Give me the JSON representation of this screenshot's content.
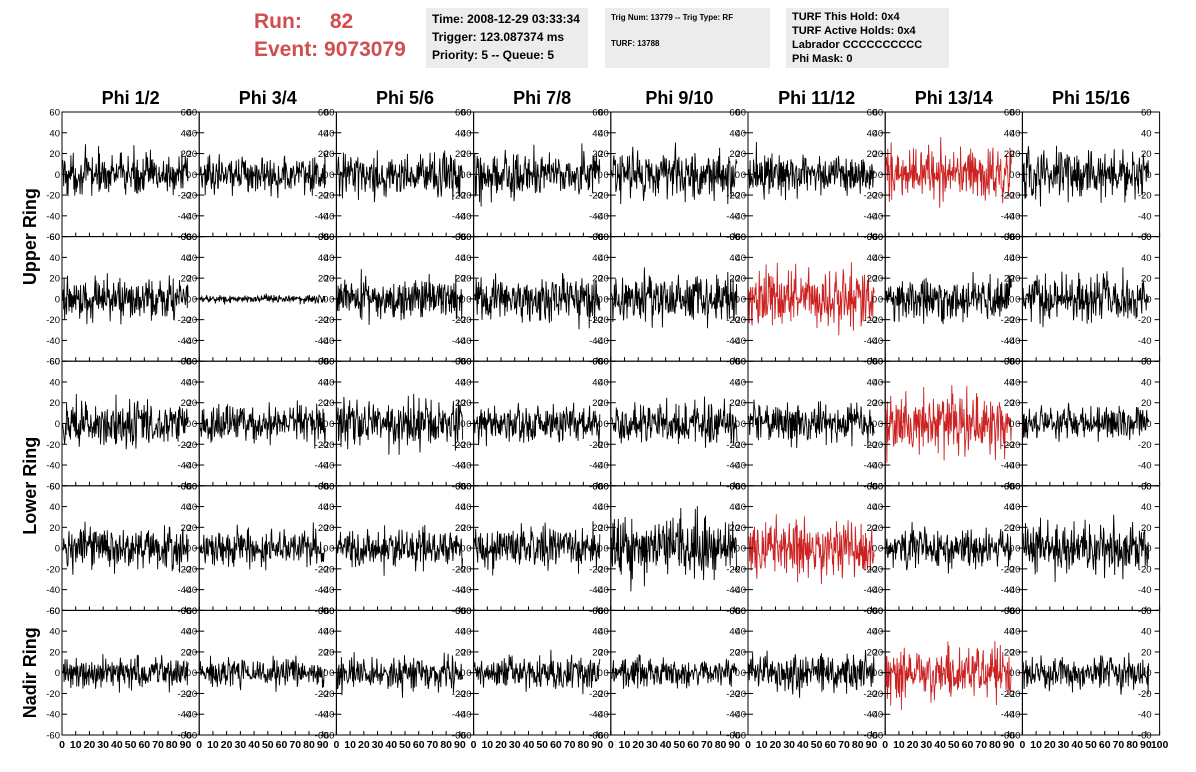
{
  "header": {
    "run_label": "Run:",
    "run_value": "82",
    "event_label": "Event:",
    "event_value": "9073079",
    "time": "Time: 2008-12-29 03:33:34",
    "trigger": "Trigger: 123.087374 ms",
    "priority": "Priority: 5 -- Queue: 5",
    "trig_num": "Trig Num: 13779 -- Trig Type: RF",
    "turf_id": "TURF: 13788",
    "turf_this_hold": "TURF This Hold: 0x4",
    "turf_active_holds": "TURF Active Holds: 0x4",
    "labrador": "Labrador CCCCCCCCCC",
    "phi_mask": "Phi Mask: 0"
  },
  "colors": {
    "accent": "#d24d4d",
    "trace": "#000000",
    "highlight_trace": "#cc2222",
    "info_bg": "#ececec"
  },
  "chart_data": {
    "type": "line",
    "columns": [
      "Phi 1/2",
      "Phi 3/4",
      "Phi 5/6",
      "Phi 7/8",
      "Phi 9/10",
      "Phi 11/12",
      "Phi 13/14",
      "Phi 15/16"
    ],
    "ring_labels": [
      {
        "label": "Upper Ring",
        "rows": [
          0,
          1
        ]
      },
      {
        "label": "Lower Ring",
        "rows": [
          2,
          3
        ]
      },
      {
        "label": "Nadir Ring",
        "rows": [
          4
        ]
      }
    ],
    "rows": 5,
    "xlim": [
      0,
      100
    ],
    "ylim": [
      -60,
      60
    ],
    "x_ticks": [
      0,
      10,
      20,
      30,
      40,
      50,
      60,
      70,
      80,
      90,
      100
    ],
    "x_tick_labels": [
      "0",
      "10",
      "20",
      "30",
      "40",
      "50",
      "60",
      "70",
      "80",
      "90",
      "100"
    ],
    "y_ticks": [
      -60,
      -40,
      -20,
      0,
      20,
      40,
      60
    ],
    "y_tick_labels": [
      "-60",
      "-40",
      "-20",
      "0",
      "20",
      "40",
      "60"
    ],
    "samples": 260,
    "amplitudes": [
      [
        10,
        9,
        10,
        11,
        12,
        10,
        13,
        12
      ],
      [
        10,
        2,
        10,
        11,
        12,
        14,
        10,
        11
      ],
      [
        11,
        9,
        11,
        9,
        10,
        10,
        15,
        8
      ],
      [
        10,
        9,
        9,
        10,
        14,
        13,
        9,
        12
      ],
      [
        8,
        7,
        8,
        8,
        7,
        9,
        14,
        8
      ]
    ],
    "highlighted": [
      [
        0,
        6
      ],
      [
        1,
        5
      ],
      [
        2,
        6
      ],
      [
        3,
        5
      ],
      [
        4,
        6
      ]
    ]
  }
}
